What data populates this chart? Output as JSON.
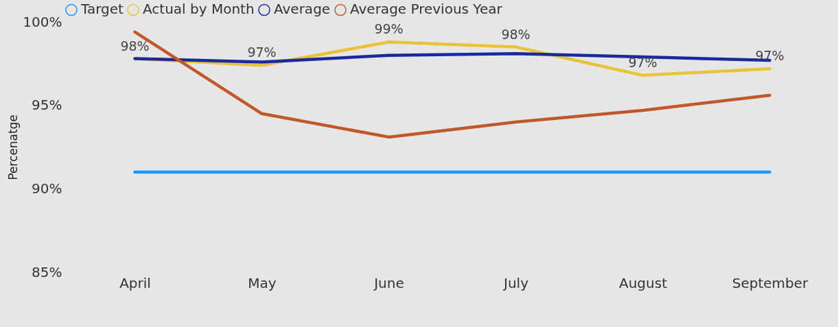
{
  "chart_data": {
    "type": "line",
    "ylabel": "Percenatge",
    "categories": [
      "April",
      "May",
      "June",
      "July",
      "August",
      "September"
    ],
    "ylim": [
      85,
      100
    ],
    "yticks": [
      {
        "value": 85,
        "label": "85%"
      },
      {
        "value": 90,
        "label": "90%"
      },
      {
        "value": 95,
        "label": "95%"
      },
      {
        "value": 100,
        "label": "100%"
      }
    ],
    "legend": "top left",
    "series": [
      {
        "name": "Target",
        "color": "#2196f3",
        "values": [
          91,
          91,
          91,
          91,
          91,
          91
        ]
      },
      {
        "name": "Actual by Month",
        "color": "#e8c33a",
        "values": [
          97.8,
          97.4,
          98.8,
          98.5,
          96.8,
          97.2
        ],
        "value_labels": [
          "98%",
          "97%",
          "99%",
          "98%",
          "97%",
          "97%"
        ]
      },
      {
        "name": "Average",
        "color": "#1a2a9c",
        "values": [
          97.8,
          97.6,
          98.0,
          98.1,
          97.9,
          97.7
        ]
      },
      {
        "name": "Average Previous Year",
        "color": "#c0582a",
        "values": [
          99.4,
          94.5,
          93.1,
          94.0,
          94.7,
          95.6
        ]
      }
    ]
  }
}
